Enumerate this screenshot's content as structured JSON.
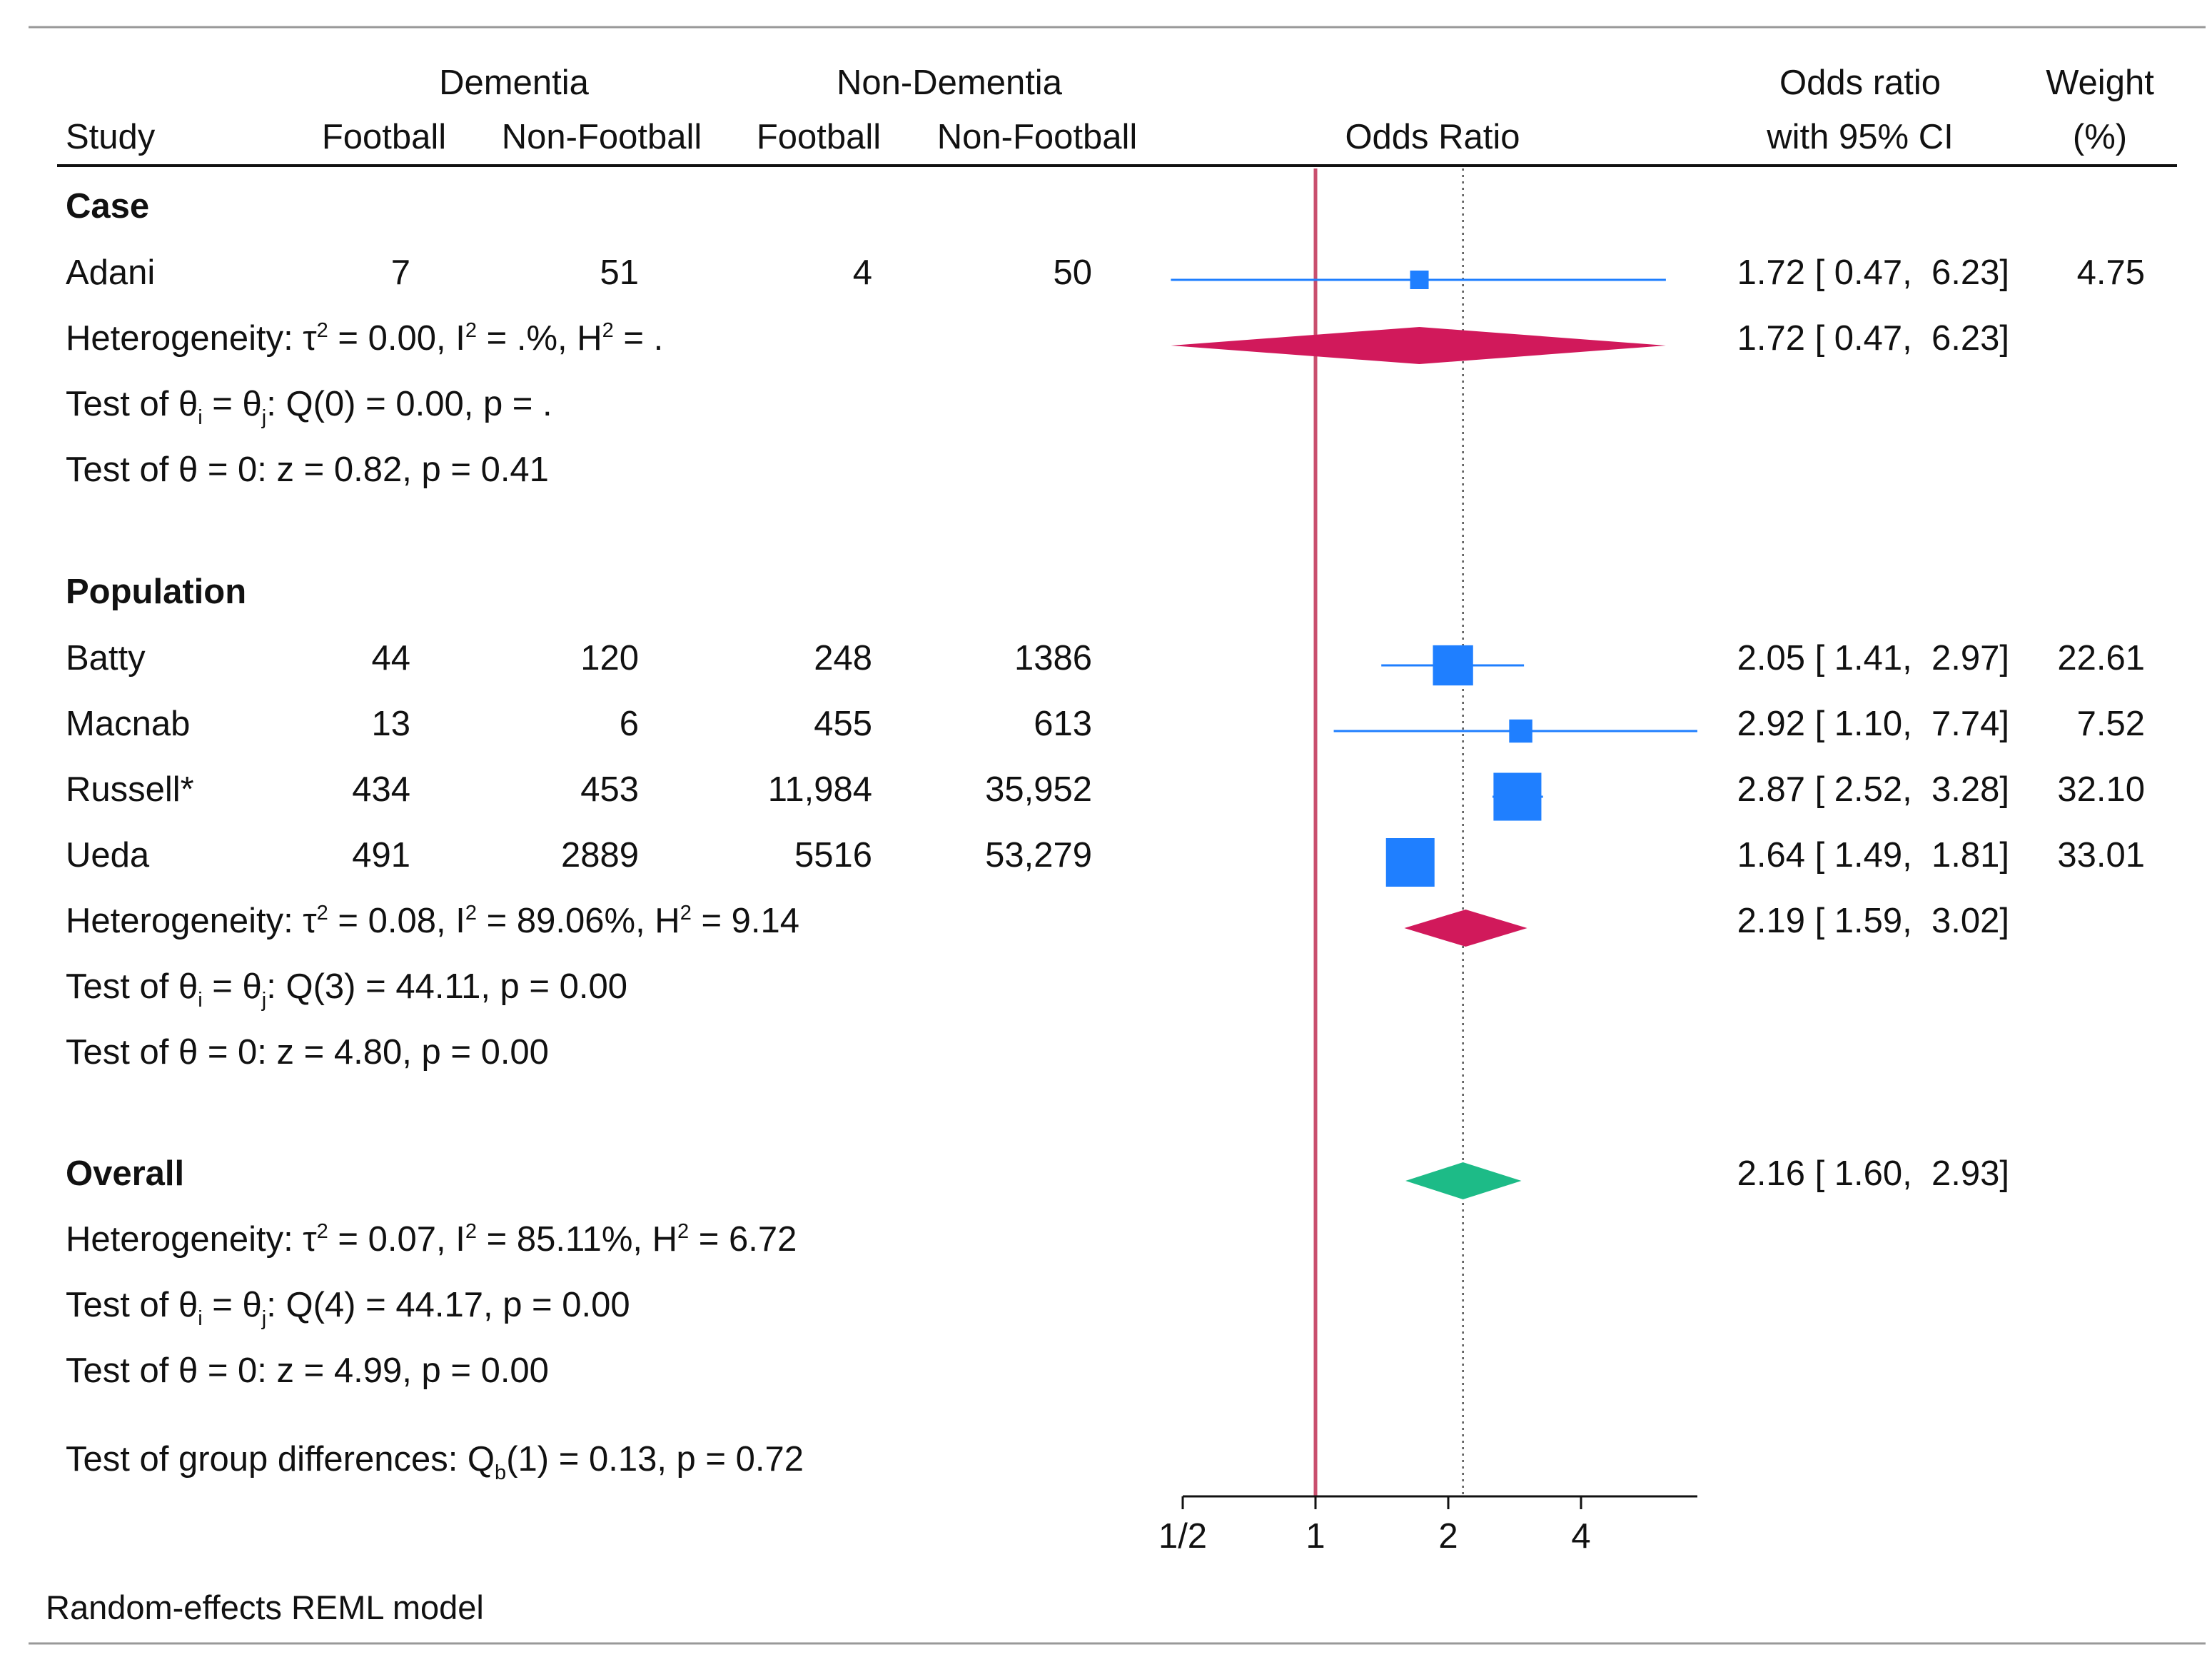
{
  "chart_data": {
    "type": "forest",
    "scale": "log2",
    "null_value": 1,
    "overall_effect": 2.16,
    "header": {
      "group_dementia": "Dementia",
      "group_non_dementia": "Non-Dementia",
      "study": "Study",
      "football": "Football",
      "non_football": "Non-Football",
      "football_2": "Football",
      "non_football_2": "Non-Football",
      "plot_label": "Odds Ratio",
      "or_line1": "Odds ratio",
      "or_line2": "with 95% CI",
      "weight_line1": "Weight",
      "weight_line2": "(%)"
    },
    "x_ticks": [
      {
        "value": 0.5,
        "label": "1/2"
      },
      {
        "value": 1,
        "label": "1"
      },
      {
        "value": 2,
        "label": "2"
      },
      {
        "value": 4,
        "label": "4"
      }
    ],
    "groups": [
      {
        "name": "Case",
        "studies": [
          {
            "name": "Adani",
            "d_football": "7",
            "d_nonfootball": "51",
            "n_football": "4",
            "n_nonfootball": "50",
            "or": 1.72,
            "lo": 0.47,
            "hi": 6.23,
            "or_text": "1.72 [ 0.47,  6.23]",
            "weight": 4.75,
            "weight_text": "4.75"
          }
        ],
        "summary": {
          "or": 1.72,
          "lo": 0.47,
          "hi": 6.23,
          "or_text": "1.72 [ 0.47,  6.23]",
          "color": "#d1195b"
        },
        "het": {
          "pre": "Heterogeneity: τ",
          "tau": "0.00",
          "i2": ".%",
          "h2": "."
        },
        "q": {
          "df": "0",
          "q": "0.00",
          "p": "."
        },
        "z": "Test of θ = 0: z = 0.82, p = 0.41"
      },
      {
        "name": "Population",
        "studies": [
          {
            "name": "Batty",
            "d_football": "44",
            "d_nonfootball": "120",
            "n_football": "248",
            "n_nonfootball": "1386",
            "or": 2.05,
            "lo": 1.41,
            "hi": 2.97,
            "or_text": "2.05 [ 1.41,  2.97]",
            "weight": 22.61,
            "weight_text": "22.61"
          },
          {
            "name": "Macnab",
            "d_football": "13",
            "d_nonfootball": "6",
            "n_football": "455",
            "n_nonfootball": "613",
            "or": 2.92,
            "lo": 1.1,
            "hi": 7.74,
            "or_text": "2.92 [ 1.10,  7.74]",
            "weight": 7.52,
            "weight_text": "7.52"
          },
          {
            "name": "Russell*",
            "d_football": "434",
            "d_nonfootball": "453",
            "n_football": "11,984",
            "n_nonfootball": "35,952",
            "or": 2.87,
            "lo": 2.52,
            "hi": 3.28,
            "or_text": "2.87 [ 2.52,  3.28]",
            "weight": 32.1,
            "weight_text": "32.10"
          },
          {
            "name": "Ueda",
            "d_football": "491",
            "d_nonfootball": "2889",
            "n_football": "5516",
            "n_nonfootball": "53,279",
            "or": 1.64,
            "lo": 1.49,
            "hi": 1.81,
            "or_text": "1.64 [ 1.49,  1.81]",
            "weight": 33.01,
            "weight_text": "33.01"
          }
        ],
        "summary": {
          "or": 2.19,
          "lo": 1.59,
          "hi": 3.02,
          "or_text": "2.19 [ 1.59,  3.02]",
          "color": "#d1195b"
        },
        "het": {
          "pre": "Heterogeneity: τ",
          "tau": "0.08",
          "i2": "89.06%",
          "h2": "9.14"
        },
        "q": {
          "df": "3",
          "q": "44.11",
          "p": "0.00"
        },
        "z": "Test of θ = 0: z = 4.80, p = 0.00"
      }
    ],
    "overall": {
      "label": "Overall",
      "or": 2.16,
      "lo": 1.6,
      "hi": 2.93,
      "or_text": "2.16 [ 1.60,  2.93]",
      "color": "#1dbb87",
      "het": {
        "pre": "Heterogeneity: τ",
        "tau": "0.07",
        "i2": "85.11%",
        "h2": "6.72"
      },
      "q": {
        "df": "4",
        "q": "44.17",
        "p": "0.00"
      },
      "z": "Test of θ = 0: z = 4.99, p = 0.00"
    },
    "group_test": {
      "df": "1",
      "q": "0.13",
      "p": "0.72"
    },
    "note": "Random-effects REML model",
    "colors": {
      "study": "#1f7fff",
      "null_line": "#c94f6e",
      "overall_line": "#555555",
      "rule": "#999999"
    }
  }
}
